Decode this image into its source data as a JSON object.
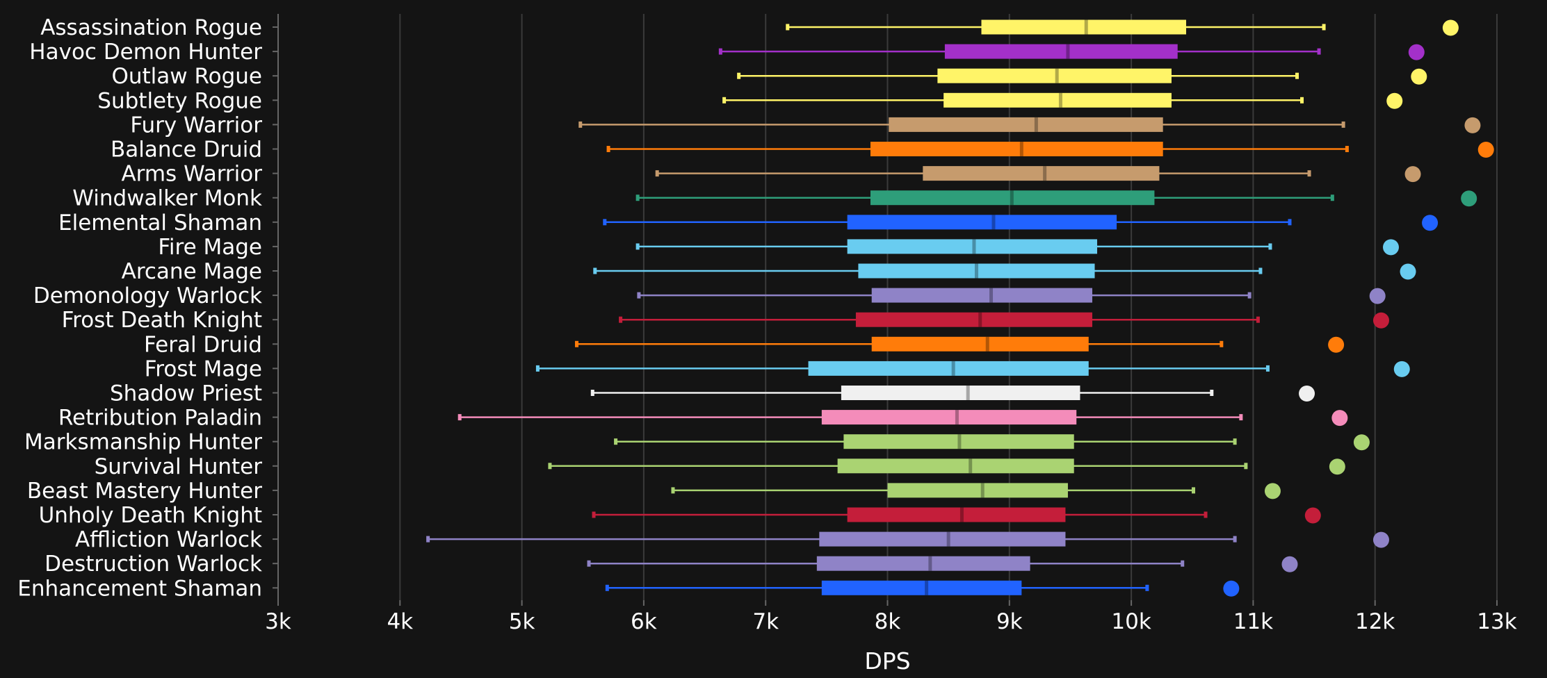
{
  "chart_data": {
    "type": "box",
    "xlabel": "DPS",
    "xlim": [
      3000,
      13000
    ],
    "x_ticks": [
      3000,
      4000,
      5000,
      6000,
      7000,
      8000,
      9000,
      10000,
      11000,
      12000,
      13000
    ],
    "x_tick_labels": [
      "3k",
      "4k",
      "5k",
      "6k",
      "7k",
      "8k",
      "9k",
      "10k",
      "11k",
      "12k",
      "13k"
    ],
    "grid": "vertical",
    "series": [
      {
        "name": "Assassination Rogue",
        "color": "#FFF468",
        "min": 7180,
        "q1": 8770,
        "median": 9630,
        "q3": 10450,
        "max": 11580,
        "top": 12620
      },
      {
        "name": "Havoc Demon Hunter",
        "color": "#A330C9",
        "min": 6630,
        "q1": 8470,
        "median": 9480,
        "q3": 10380,
        "max": 11540,
        "top": 12340
      },
      {
        "name": "Outlaw Rogue",
        "color": "#FFF468",
        "min": 6780,
        "q1": 8410,
        "median": 9390,
        "q3": 10330,
        "max": 11360,
        "top": 12360
      },
      {
        "name": "Subtlety Rogue",
        "color": "#FFF468",
        "min": 6660,
        "q1": 8460,
        "median": 9420,
        "q3": 10330,
        "max": 11400,
        "top": 12160
      },
      {
        "name": "Fury Warrior",
        "color": "#C69B6D",
        "min": 5480,
        "q1": 8010,
        "median": 9220,
        "q3": 10260,
        "max": 11740,
        "top": 12800
      },
      {
        "name": "Balance Druid",
        "color": "#FF7C0A",
        "min": 5710,
        "q1": 7860,
        "median": 9100,
        "q3": 10260,
        "max": 11770,
        "top": 12910
      },
      {
        "name": "Arms Warrior",
        "color": "#C69B6D",
        "min": 6110,
        "q1": 8290,
        "median": 9290,
        "q3": 10230,
        "max": 11460,
        "top": 12310
      },
      {
        "name": "Windwalker Monk",
        "color": "#2E9E7A",
        "min": 5950,
        "q1": 7860,
        "median": 9020,
        "q3": 10190,
        "max": 11650,
        "top": 12770
      },
      {
        "name": "Elemental Shaman",
        "color": "#2163FF",
        "min": 5680,
        "q1": 7670,
        "median": 8870,
        "q3": 9880,
        "max": 11300,
        "top": 12450
      },
      {
        "name": "Fire Mage",
        "color": "#69CCF0",
        "min": 5950,
        "q1": 7670,
        "median": 8710,
        "q3": 9720,
        "max": 11140,
        "top": 12130
      },
      {
        "name": "Arcane Mage",
        "color": "#69CCF0",
        "min": 5600,
        "q1": 7760,
        "median": 8730,
        "q3": 9700,
        "max": 11060,
        "top": 12270
      },
      {
        "name": "Demonology Warlock",
        "color": "#8F83C7",
        "min": 5960,
        "q1": 7870,
        "median": 8850,
        "q3": 9680,
        "max": 10970,
        "top": 12020
      },
      {
        "name": "Frost Death Knight",
        "color": "#C41E3A",
        "min": 5810,
        "q1": 7740,
        "median": 8760,
        "q3": 9680,
        "max": 11040,
        "top": 12050
      },
      {
        "name": "Feral Druid",
        "color": "#FF7C0A",
        "min": 5450,
        "q1": 7870,
        "median": 8820,
        "q3": 9650,
        "max": 10740,
        "top": 11680
      },
      {
        "name": "Frost Mage",
        "color": "#69CCF0",
        "min": 5130,
        "q1": 7350,
        "median": 8540,
        "q3": 9650,
        "max": 11120,
        "top": 12220
      },
      {
        "name": "Shadow Priest",
        "color": "#F0F0F0",
        "min": 5580,
        "q1": 7620,
        "median": 8660,
        "q3": 9580,
        "max": 10660,
        "top": 11440
      },
      {
        "name": "Retribution Paladin",
        "color": "#F48CBA",
        "min": 4490,
        "q1": 7460,
        "median": 8570,
        "q3": 9550,
        "max": 10900,
        "top": 11710
      },
      {
        "name": "Marksmanship Hunter",
        "color": "#AAD372",
        "min": 5770,
        "q1": 7640,
        "median": 8590,
        "q3": 9530,
        "max": 10850,
        "top": 11890
      },
      {
        "name": "Survival Hunter",
        "color": "#AAD372",
        "min": 5230,
        "q1": 7590,
        "median": 8680,
        "q3": 9530,
        "max": 10940,
        "top": 11690
      },
      {
        "name": "Beast Mastery Hunter",
        "color": "#AAD372",
        "min": 6240,
        "q1": 8000,
        "median": 8780,
        "q3": 9480,
        "max": 10510,
        "top": 11160
      },
      {
        "name": "Unholy Death Knight",
        "color": "#C41E3A",
        "min": 5590,
        "q1": 7670,
        "median": 8610,
        "q3": 9460,
        "max": 10610,
        "top": 11490
      },
      {
        "name": "Affliction Warlock",
        "color": "#8F83C7",
        "min": 4230,
        "q1": 7440,
        "median": 8500,
        "q3": 9460,
        "max": 10850,
        "top": 12050
      },
      {
        "name": "Destruction Warlock",
        "color": "#8F83C7",
        "min": 5550,
        "q1": 7420,
        "median": 8350,
        "q3": 9170,
        "max": 10420,
        "top": 11300
      },
      {
        "name": "Enhancement Shaman",
        "color": "#2163FF",
        "min": 5700,
        "q1": 7460,
        "median": 8320,
        "q3": 9100,
        "max": 10130,
        "top": 10820
      }
    ]
  }
}
